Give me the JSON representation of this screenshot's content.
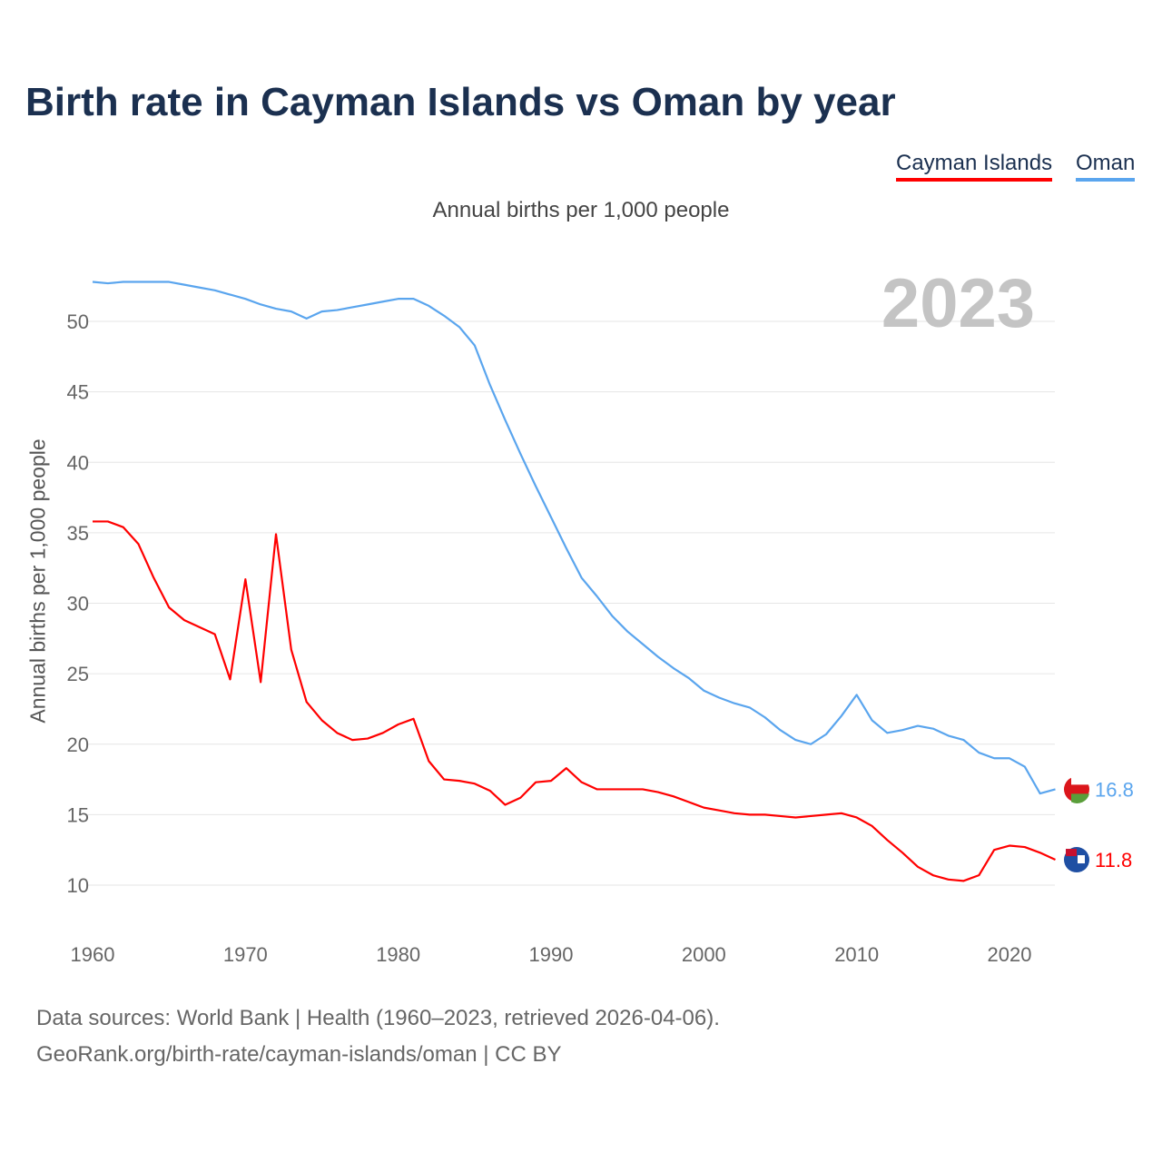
{
  "chart_data": {
    "type": "line",
    "title": "Birth rate in Cayman Islands vs Oman by year",
    "subtitle": "Annual births per 1,000 people",
    "ylabel": "Annual births per 1,000 people",
    "xlabel": "",
    "year_label": "2023",
    "xlim": [
      1960,
      2023
    ],
    "ylim": [
      7,
      54
    ],
    "xticks": [
      1960,
      1970,
      1980,
      1990,
      2000,
      2010,
      2020
    ],
    "yticks": [
      10,
      15,
      20,
      25,
      30,
      35,
      40,
      45,
      50
    ],
    "grid": true,
    "legend_position": "top-right",
    "x": [
      1960,
      1961,
      1962,
      1963,
      1964,
      1965,
      1966,
      1967,
      1968,
      1969,
      1970,
      1971,
      1972,
      1973,
      1974,
      1975,
      1976,
      1977,
      1978,
      1979,
      1980,
      1981,
      1982,
      1983,
      1984,
      1985,
      1986,
      1987,
      1988,
      1989,
      1990,
      1991,
      1992,
      1993,
      1994,
      1995,
      1996,
      1997,
      1998,
      1999,
      2000,
      2001,
      2002,
      2003,
      2004,
      2005,
      2006,
      2007,
      2008,
      2009,
      2010,
      2011,
      2012,
      2013,
      2014,
      2015,
      2016,
      2017,
      2018,
      2019,
      2020,
      2021,
      2022,
      2023
    ],
    "series": [
      {
        "name": "Cayman Islands",
        "color": "#ff0000",
        "end_label": "11.8",
        "values": [
          35.8,
          35.8,
          35.4,
          34.2,
          31.8,
          29.7,
          28.8,
          28.3,
          27.8,
          24.6,
          31.7,
          24.4,
          34.9,
          26.7,
          23.0,
          21.7,
          20.8,
          20.3,
          20.4,
          20.8,
          21.4,
          21.8,
          18.8,
          17.5,
          17.4,
          17.2,
          16.7,
          15.7,
          16.2,
          17.3,
          17.4,
          18.3,
          17.3,
          16.8,
          16.8,
          16.8,
          16.8,
          16.6,
          16.3,
          15.9,
          15.5,
          15.3,
          15.1,
          15.0,
          15.0,
          14.9,
          14.8,
          14.9,
          15.0,
          15.1,
          14.8,
          14.2,
          13.2,
          12.3,
          11.3,
          10.7,
          10.4,
          10.3,
          10.7,
          12.5,
          12.8,
          12.7,
          12.3,
          11.8
        ]
      },
      {
        "name": "Oman",
        "color": "#5aa5ee",
        "end_label": "16.8",
        "values": [
          52.8,
          52.7,
          52.8,
          52.8,
          52.8,
          52.8,
          52.6,
          52.4,
          52.2,
          51.9,
          51.6,
          51.2,
          50.9,
          50.7,
          50.2,
          50.7,
          50.8,
          51.0,
          51.2,
          51.4,
          51.6,
          51.6,
          51.1,
          50.4,
          49.6,
          48.3,
          45.5,
          43.0,
          40.6,
          38.3,
          36.1,
          33.9,
          31.8,
          30.5,
          29.1,
          28.0,
          27.1,
          26.2,
          25.4,
          24.7,
          23.8,
          23.3,
          22.9,
          22.6,
          21.9,
          21.0,
          20.3,
          20.0,
          20.7,
          22.0,
          23.5,
          21.7,
          20.8,
          21.0,
          21.3,
          21.1,
          20.6,
          20.3,
          19.4,
          19.0,
          19.0,
          18.4,
          16.5,
          16.8
        ]
      }
    ]
  },
  "footer": {
    "line1": "Data sources: World Bank | Health (1960–2023, retrieved 2026-04-06).",
    "line2": "GeoRank.org/birth-rate/cayman-islands/oman | CC BY"
  }
}
